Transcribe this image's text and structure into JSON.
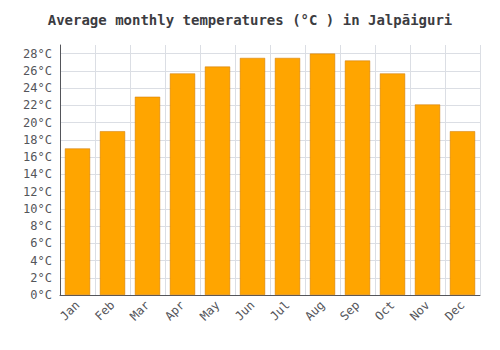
{
  "chart_data": {
    "type": "bar",
    "title": "Average monthly temperatures (°C ) in Jalpāiguri",
    "categories": [
      "Jan",
      "Feb",
      "Mar",
      "Apr",
      "May",
      "Jun",
      "Jul",
      "Aug",
      "Sep",
      "Oct",
      "Nov",
      "Dec"
    ],
    "values": [
      17.0,
      19.0,
      23.0,
      25.7,
      26.5,
      27.5,
      27.5,
      28.0,
      27.2,
      25.7,
      22.1,
      19.0
    ],
    "color": "#FFA500",
    "ylim": [
      0,
      29
    ],
    "yticks": [
      {
        "value": 0,
        "label": "0°C"
      },
      {
        "value": 2,
        "label": "2°C"
      },
      {
        "value": 4,
        "label": "4°C"
      },
      {
        "value": 6,
        "label": "6°C"
      },
      {
        "value": 8,
        "label": "8°C"
      },
      {
        "value": 10,
        "label": "10°C"
      },
      {
        "value": 12,
        "label": "12°C"
      },
      {
        "value": 14,
        "label": "14°C"
      },
      {
        "value": 16,
        "label": "16°C"
      },
      {
        "value": 18,
        "label": "18°C"
      },
      {
        "value": 20,
        "label": "20°C"
      },
      {
        "value": 22,
        "label": "22°C"
      },
      {
        "value": 24,
        "label": "24°C"
      },
      {
        "value": 26,
        "label": "26°C"
      },
      {
        "value": 28,
        "label": "28°C"
      }
    ],
    "grid": true
  }
}
